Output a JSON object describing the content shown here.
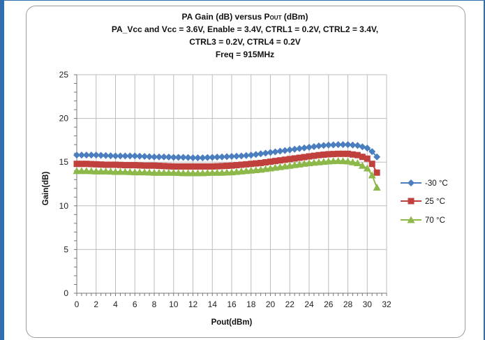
{
  "chart_data": {
    "type": "line",
    "title_lines": [
      "PA Gain (dB) versus POUT (dBm)",
      "PA_Vcc  and Vcc = 3.6V, Enable = 3.4V, CTRL1 = 0.2V, CTRL2 = 3.4V,",
      "CTRL3 = 0.2V, CTRL4 = 0.2V",
      "Freq = 915MHz"
    ],
    "title_main": "PA Gain (dB) versus P",
    "title_sub": "OUT",
    "title_tail": " (dBm)",
    "xlabel": "Pout(dBm)",
    "ylabel": "Gain(dB)",
    "xlim": [
      0,
      32
    ],
    "ylim": [
      0,
      25
    ],
    "xticks": [
      0,
      2,
      4,
      6,
      8,
      10,
      12,
      14,
      16,
      18,
      20,
      22,
      24,
      26,
      28,
      30,
      32
    ],
    "yticks": [
      0,
      5,
      10,
      15,
      20,
      25
    ],
    "grid": true,
    "legend_position": "right",
    "x_step": 0.5,
    "series": [
      {
        "name": "-30 °C",
        "color": "#4a7ebf",
        "marker": "diamond",
        "x": [
          0,
          1,
          2,
          3,
          4,
          5,
          6,
          7,
          8,
          9,
          10,
          11,
          12,
          13,
          14,
          15,
          16,
          17,
          18,
          19,
          20,
          21,
          22,
          23,
          24,
          25,
          26,
          27,
          28,
          29,
          30,
          30.5,
          31
        ],
        "y": [
          15.8,
          15.8,
          15.8,
          15.75,
          15.7,
          15.7,
          15.7,
          15.65,
          15.6,
          15.6,
          15.55,
          15.55,
          15.5,
          15.5,
          15.55,
          15.6,
          15.65,
          15.7,
          15.8,
          15.95,
          16.1,
          16.25,
          16.4,
          16.55,
          16.7,
          16.85,
          16.95,
          17.0,
          17.0,
          16.9,
          16.6,
          16.2,
          15.6
        ]
      },
      {
        "name": "25 °C",
        "color": "#c0403d",
        "marker": "square",
        "x": [
          0,
          1,
          2,
          3,
          4,
          5,
          6,
          7,
          8,
          9,
          10,
          11,
          12,
          13,
          14,
          15,
          16,
          17,
          18,
          19,
          20,
          21,
          22,
          23,
          24,
          25,
          26,
          27,
          28,
          29,
          30,
          30.5,
          31
        ],
        "y": [
          14.8,
          14.8,
          14.75,
          14.7,
          14.7,
          14.65,
          14.65,
          14.6,
          14.6,
          14.55,
          14.5,
          14.5,
          14.5,
          14.5,
          14.5,
          14.55,
          14.6,
          14.7,
          14.8,
          14.9,
          15.05,
          15.2,
          15.35,
          15.5,
          15.65,
          15.8,
          15.9,
          15.95,
          15.95,
          15.8,
          15.4,
          14.8,
          13.8
        ]
      },
      {
        "name": "70 °C",
        "color": "#8db84a",
        "marker": "triangle",
        "x": [
          0,
          1,
          2,
          3,
          4,
          5,
          6,
          7,
          8,
          9,
          10,
          11,
          12,
          13,
          14,
          15,
          16,
          17,
          18,
          19,
          20,
          21,
          22,
          23,
          24,
          25,
          26,
          27,
          28,
          29,
          30,
          30.5,
          31
        ],
        "y": [
          14.0,
          14.0,
          13.95,
          13.95,
          13.9,
          13.9,
          13.85,
          13.85,
          13.8,
          13.8,
          13.8,
          13.75,
          13.75,
          13.75,
          13.8,
          13.8,
          13.85,
          13.95,
          14.05,
          14.15,
          14.3,
          14.45,
          14.6,
          14.75,
          14.9,
          15.0,
          15.1,
          15.15,
          15.1,
          14.9,
          14.3,
          13.5,
          12.1
        ]
      }
    ]
  }
}
